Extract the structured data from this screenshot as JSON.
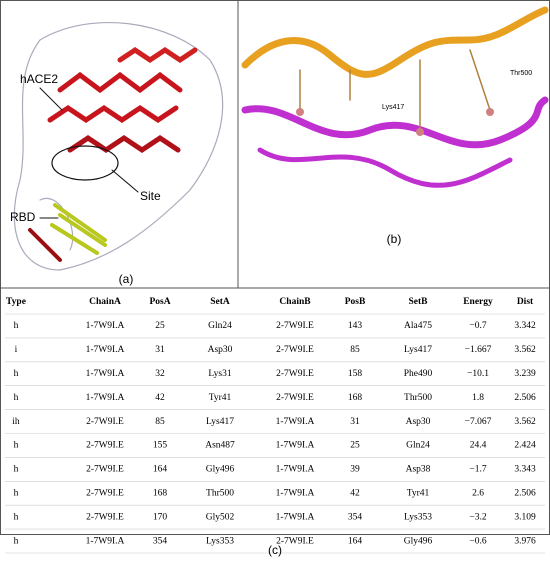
{
  "panel_a": {
    "labels": [
      "hACE2",
      "Site",
      "RBD"
    ],
    "caption": "(a)"
  },
  "panel_b": {
    "labels": [
      "Lys417",
      "Thr500"
    ],
    "caption": "(b)"
  },
  "table": {
    "header": [
      "Type",
      "ChainA",
      "PosA",
      "SetA",
      "ChainB",
      "PosB",
      "SetB",
      "Energy",
      "Dist"
    ],
    "rows": [
      [
        "h",
        "1-7W9I.A",
        "25",
        "Gln24",
        "2-7W9I.E",
        "143",
        "Ala475",
        "−0.7",
        "3.342"
      ],
      [
        "i",
        "1-7W9I.A",
        "31",
        "Asp30",
        "2-7W9I.E",
        "85",
        "Lys417",
        "−1.667",
        "3.562"
      ],
      [
        "h",
        "1-7W9I.A",
        "32",
        "Lys31",
        "2-7W9I.E",
        "158",
        "Phe490",
        "−10.1",
        "3.239"
      ],
      [
        "h",
        "1-7W9I.A",
        "42",
        "Tyr41",
        "2-7W9I.E",
        "168",
        "Thr500",
        "1.8",
        "2.506"
      ],
      [
        "ih",
        "2-7W9I.E",
        "85",
        "Lys417",
        "1-7W9I.A",
        "31",
        "Asp30",
        "−7.067",
        "3.562"
      ],
      [
        "h",
        "2-7W9I.E",
        "155",
        "Asn487",
        "1-7W9I.A",
        "25",
        "Gln24",
        "24.4",
        "2.424"
      ],
      [
        "h",
        "2-7W9I.E",
        "164",
        "Gly496",
        "1-7W9I.A",
        "39",
        "Asp38",
        "−1.7",
        "3.343"
      ],
      [
        "h",
        "2-7W9I.E",
        "168",
        "Thr500",
        "1-7W9I.A",
        "42",
        "Tyr41",
        "2.6",
        "2.506"
      ],
      [
        "h",
        "2-7W9I.E",
        "170",
        "Gly502",
        "1-7W9I.A",
        "354",
        "Lys353",
        "−3.2",
        "3.109"
      ],
      [
        "h",
        "1-7W9I.A",
        "354",
        "Lys353",
        "2-7W9I.E",
        "164",
        "Gly496",
        "−0.6",
        "3.976"
      ]
    ],
    "caption": "(c)"
  }
}
